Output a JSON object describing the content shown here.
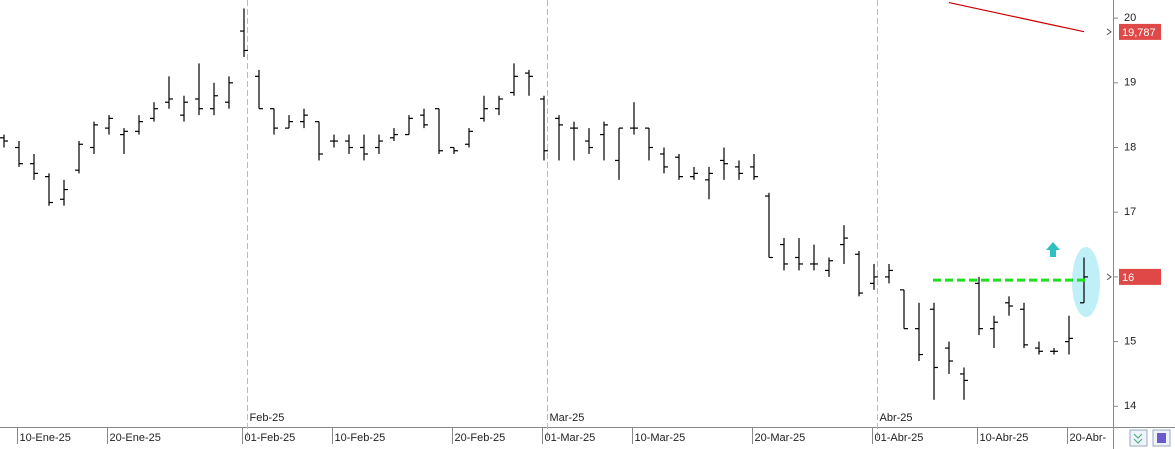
{
  "chart_data": {
    "type": "ohlc",
    "color": "#000000",
    "open": [
      18.15,
      18.0,
      17.75,
      17.55,
      17.2,
      17.65,
      18.0,
      18.3,
      18.2,
      18.25,
      18.45,
      18.7,
      18.5,
      18.75,
      18.6,
      18.7,
      19.8,
      19.1,
      18.6,
      18.3,
      18.4,
      18.4,
      18.1,
      18.1,
      18.0,
      18.0,
      18.15,
      18.2,
      18.5,
      18.6,
      18.0,
      18.05,
      18.45,
      18.6,
      18.85,
      19.15,
      18.75,
      18.45,
      18.3,
      18.1,
      18.2,
      17.8,
      18.3,
      18.3,
      17.9,
      17.85,
      17.55,
      17.5,
      17.8,
      17.7,
      17.7,
      17.25,
      16.5,
      16.3,
      16.2,
      16.1,
      16.5,
      16.35,
      15.9,
      16.0,
      15.8,
      15.2,
      15.5,
      14.9,
      14.5,
      15.9,
      15.2,
      15.6,
      15.5,
      14.9,
      14.85,
      15.0,
      15.6
    ],
    "high": [
      18.2,
      18.1,
      17.9,
      17.6,
      17.5,
      18.1,
      18.4,
      18.5,
      18.3,
      18.5,
      18.7,
      19.1,
      18.8,
      19.3,
      19.0,
      19.1,
      20.15,
      19.2,
      18.6,
      18.5,
      18.6,
      18.4,
      18.2,
      18.2,
      18.2,
      18.2,
      18.3,
      18.5,
      18.6,
      18.6,
      18.0,
      18.3,
      18.8,
      18.8,
      19.3,
      19.2,
      18.8,
      18.5,
      18.4,
      18.3,
      18.4,
      18.3,
      18.7,
      18.3,
      18.0,
      17.9,
      17.7,
      17.7,
      18.0,
      17.8,
      17.9,
      17.3,
      16.6,
      16.6,
      16.5,
      16.3,
      16.8,
      16.4,
      16.2,
      16.2,
      15.8,
      15.6,
      15.6,
      15.0,
      14.6,
      16.0,
      15.4,
      15.7,
      15.6,
      15.0,
      14.9,
      15.4,
      16.3
    ],
    "low": [
      18.0,
      17.7,
      17.5,
      17.1,
      17.1,
      17.6,
      17.9,
      18.2,
      17.9,
      18.2,
      18.4,
      18.6,
      18.4,
      18.5,
      18.5,
      18.6,
      19.4,
      18.6,
      18.2,
      18.3,
      18.3,
      17.8,
      18.0,
      17.9,
      17.8,
      17.9,
      18.1,
      18.2,
      18.3,
      17.9,
      17.9,
      18.0,
      18.4,
      18.5,
      18.8,
      18.8,
      17.8,
      17.8,
      17.8,
      17.9,
      17.8,
      17.5,
      18.2,
      17.8,
      17.6,
      17.5,
      17.5,
      17.2,
      17.5,
      17.5,
      17.5,
      16.3,
      16.1,
      16.1,
      16.1,
      16.0,
      16.2,
      15.7,
      15.8,
      15.9,
      15.2,
      14.7,
      14.1,
      14.5,
      14.1,
      15.1,
      14.9,
      15.4,
      14.9,
      14.8,
      14.8,
      14.8,
      15.6
    ],
    "close": [
      18.1,
      17.75,
      17.6,
      17.15,
      17.35,
      18.05,
      18.35,
      18.45,
      18.25,
      18.4,
      18.6,
      18.75,
      18.7,
      18.6,
      18.8,
      19.0,
      19.5,
      18.6,
      18.3,
      18.4,
      18.5,
      17.9,
      18.1,
      18.0,
      17.9,
      18.1,
      18.2,
      18.45,
      18.35,
      17.95,
      17.95,
      18.25,
      18.6,
      18.75,
      19.1,
      19.1,
      17.95,
      18.35,
      18.3,
      18.0,
      18.35,
      18.3,
      18.3,
      18.0,
      17.7,
      17.55,
      17.6,
      17.6,
      17.75,
      17.6,
      17.55,
      16.3,
      16.2,
      16.2,
      16.2,
      16.25,
      16.6,
      15.75,
      16.0,
      16.1,
      15.2,
      14.8,
      14.6,
      14.7,
      14.4,
      15.2,
      15.3,
      15.55,
      14.95,
      14.85,
      14.85,
      15.05,
      16.0
    ],
    "categories": [
      null,
      "10-Ene-25",
      null,
      null,
      null,
      null,
      null,
      "20-Ene-25",
      null,
      null,
      null,
      null,
      null,
      null,
      null,
      null,
      "01-Feb-25",
      null,
      null,
      null,
      null,
      null,
      "10-Feb-25",
      null,
      null,
      null,
      null,
      null,
      null,
      null,
      "20-Feb-25",
      null,
      null,
      null,
      null,
      null,
      "01-Mar-25",
      null,
      null,
      null,
      null,
      null,
      "10-Mar-25",
      null,
      null,
      null,
      null,
      null,
      null,
      null,
      "20-Mar-25",
      null,
      null,
      null,
      null,
      null,
      null,
      null,
      "01-Abr-25",
      null,
      null,
      null,
      null,
      null,
      null,
      "10-Abr-25",
      null,
      null,
      null,
      null,
      null,
      "20-Abr-",
      null
    ],
    "month_labels": [
      null,
      null,
      null,
      null,
      null,
      null,
      null,
      null,
      null,
      null,
      null,
      null,
      null,
      null,
      null,
      null,
      "Feb-25",
      null,
      null,
      null,
      null,
      null,
      null,
      null,
      null,
      null,
      null,
      null,
      null,
      null,
      null,
      null,
      null,
      null,
      null,
      null,
      "Mar-25",
      null,
      null,
      null,
      null,
      null,
      null,
      null,
      null,
      null,
      null,
      null,
      null,
      null,
      null,
      null,
      null,
      null,
      null,
      null,
      null,
      null,
      "Abr-25",
      null,
      null,
      null,
      null,
      null,
      null,
      null,
      null,
      null,
      null,
      null,
      null,
      null,
      null,
      null
    ],
    "series": [
      {
        "color": "#cc0000",
        "values": [
          null,
          null,
          null,
          null,
          null,
          null,
          null,
          null,
          null,
          null,
          null,
          null,
          null,
          null,
          null,
          null,
          null,
          null,
          null,
          null,
          null,
          null,
          null,
          null,
          null,
          null,
          null,
          null,
          null,
          null,
          null,
          null,
          null,
          null,
          null,
          null,
          null,
          null,
          null,
          null,
          null,
          null,
          null,
          null,
          null,
          null,
          null,
          null,
          null,
          null,
          null,
          null,
          null,
          null,
          null,
          null,
          null,
          null,
          null,
          null,
          null,
          null,
          null,
          20.24,
          20.19,
          20.14,
          20.09,
          20.04,
          19.99,
          19.94,
          19.89,
          19.84,
          19.79
        ]
      }
    ],
    "price_tags": [
      {
        "value": 19.787,
        "label": "19,787"
      },
      {
        "value": 16,
        "label": "16"
      }
    ],
    "tag_color": "#e04848",
    "level": 15.95,
    "level_color": "#22dd22",
    "ylim": [
      13.68,
      20.28
    ],
    "yticks": [
      14,
      15,
      16,
      17,
      18,
      19,
      20
    ]
  }
}
